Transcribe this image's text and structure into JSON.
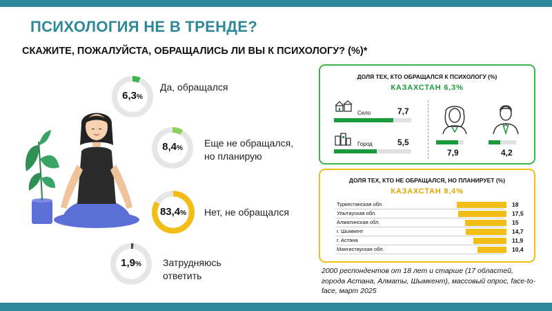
{
  "header": {
    "title": "ПСИХОЛОГИЯ НЕ В ТРЕНДЕ?",
    "question": "СКАЖИТЕ, ПОЖАЛУЙСТА, ОБРАЩАЛИСЬ ЛИ ВЫ К ПСИХОЛОГУ? (%)*"
  },
  "colors": {
    "teal": "#2e8899",
    "green": "#3cb44b",
    "yellow": "#f3bd17",
    "dark": "#444444"
  },
  "chart_data": [
    {
      "type": "pie",
      "title": "СКАЖИТЕ, ПОЖАЛУЙСТА, ОБРАЩАЛИСЬ ЛИ ВЫ К ПСИХОЛОГУ? (%)*",
      "unit": "%",
      "slices": [
        {
          "label": "Да, обращался",
          "value": 6.3,
          "display": "6,3",
          "color": "#3cb44b"
        },
        {
          "label": "Еще не обращался, но планирую",
          "value": 8.4,
          "display": "8,4",
          "color": "#8ed15a"
        },
        {
          "label": "Нет, не обращался",
          "value": 83.4,
          "display": "83,4",
          "color": "#f3bd17"
        },
        {
          "label": "Затрудняюсь ответить",
          "value": 1.9,
          "display": "1,9",
          "color": "#444444"
        }
      ]
    },
    {
      "type": "bar",
      "title": "ДОЛЯ ТЕХ, КТО ОБРАЩАЛСЯ К ПСИХОЛОГУ (%)",
      "subtitle": "КАЗАХСТАН 6,3%",
      "settlement": [
        {
          "label": "Село",
          "value": 7.7,
          "display": "7,7"
        },
        {
          "label": "Город",
          "value": 5.5,
          "display": "5,5"
        }
      ],
      "gender": [
        {
          "icon": "woman-icon",
          "value": 7.9,
          "display": "7,9"
        },
        {
          "icon": "man-icon",
          "value": 4.2,
          "display": "4,2"
        }
      ]
    },
    {
      "type": "bar",
      "title": "ДОЛЯ ТЕХ, КТО НЕ ОБРАЩАЛСЯ, НО ПЛАНИРУЕТ (%)",
      "subtitle": "КАЗАХСТАН 8,4%",
      "categories": [
        "Туркестанская обл.",
        "Улытауская обл.",
        "Алматинская обл.",
        "г. Шымкент",
        "г. Астана",
        "Мангистауская обл."
      ],
      "values": [
        18,
        17.5,
        15,
        14.7,
        11.9,
        10.4
      ],
      "display": [
        "18",
        "17,5",
        "15",
        "14,7",
        "11,9",
        "10,4"
      ]
    }
  ],
  "footnote": "2000 респондентов от 18 лет и старше (17 областей, города Астана, Алматы, Шымкент), массовый опрос, face-to-face, март 2025"
}
